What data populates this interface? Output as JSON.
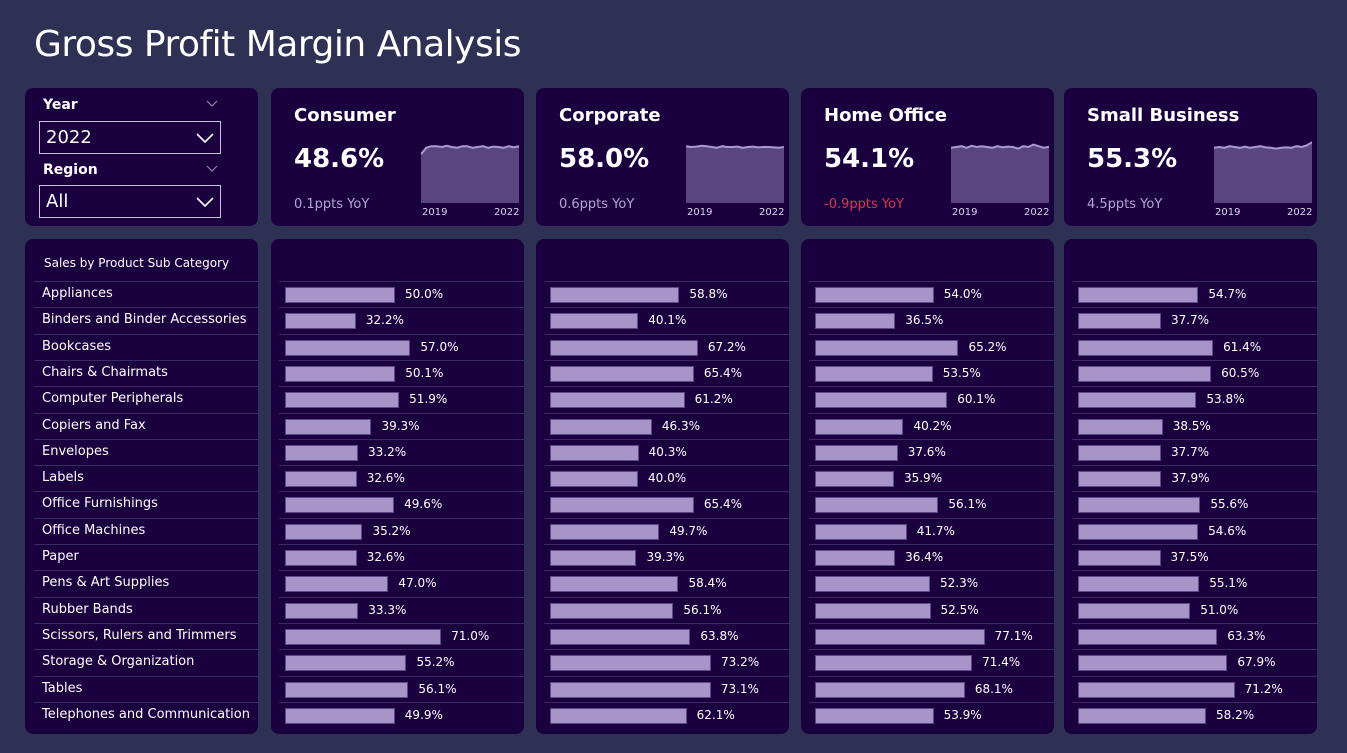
{
  "title": "Gross Profit Margin Analysis",
  "filters": {
    "year": {
      "label": "Year",
      "value": "2022"
    },
    "region": {
      "label": "Region",
      "value": "All"
    }
  },
  "kpis": [
    {
      "name": "Consumer",
      "value": "48.6%",
      "yoy": "0.1ppts YoY",
      "yoy_negative": false
    },
    {
      "name": "Corporate",
      "value": "58.0%",
      "yoy": "0.6ppts YoY",
      "yoy_negative": false
    },
    {
      "name": "Home Office",
      "value": "54.1%",
      "yoy": "-0.9ppts YoY",
      "yoy_negative": true
    },
    {
      "name": "Small Business",
      "value": "55.3%",
      "yoy": "4.5ppts YoY",
      "yoy_negative": false
    }
  ],
  "sparkline": {
    "x_start": "2019",
    "x_end": "2022"
  },
  "colors": {
    "bar": "#a795c9",
    "area": "#5a4580",
    "line": "#a99ad0",
    "negative": "#d63a4a"
  },
  "chart_data": {
    "type": "bar",
    "title": "Sales by Product Sub Category",
    "categories": [
      "Appliances",
      "Binders and Binder Accessories",
      "Bookcases",
      "Chairs & Chairmats",
      "Computer Peripherals",
      "Copiers and Fax",
      "Envelopes",
      "Labels",
      "Office Furnishings",
      "Office Machines",
      "Paper",
      "Pens & Art Supplies",
      "Rubber Bands",
      "Scissors, Rulers and Trimmers",
      "Storage & Organization",
      "Tables",
      "Telephones and Communication"
    ],
    "series": [
      {
        "name": "Consumer",
        "values": [
          50.0,
          32.2,
          57.0,
          50.1,
          51.9,
          39.3,
          33.2,
          32.6,
          49.6,
          35.2,
          32.6,
          47.0,
          33.3,
          71.0,
          55.2,
          56.1,
          49.9
        ]
      },
      {
        "name": "Corporate",
        "values": [
          58.8,
          40.1,
          67.2,
          65.4,
          61.2,
          46.3,
          40.3,
          40.0,
          65.4,
          49.7,
          39.3,
          58.4,
          56.1,
          63.8,
          73.2,
          73.1,
          62.1
        ]
      },
      {
        "name": "Home Office",
        "values": [
          54.0,
          36.5,
          65.2,
          53.5,
          60.1,
          40.2,
          37.6,
          35.9,
          56.1,
          41.7,
          36.4,
          52.3,
          52.5,
          77.1,
          71.4,
          68.1,
          53.9
        ]
      },
      {
        "name": "Small Business",
        "values": [
          54.7,
          37.7,
          61.4,
          60.5,
          53.8,
          38.5,
          37.7,
          37.9,
          55.6,
          54.6,
          37.5,
          55.1,
          51.0,
          63.3,
          67.9,
          71.2,
          58.2
        ]
      }
    ],
    "value_suffix": "%",
    "xlim": [
      0,
      100
    ],
    "grid": false,
    "legend": "none"
  }
}
